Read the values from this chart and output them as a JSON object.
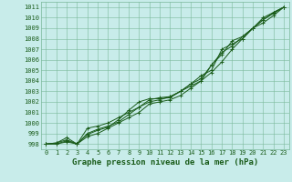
{
  "xlabel": "Graphe pression niveau de la mer (hPa)",
  "x": [
    0,
    1,
    2,
    3,
    4,
    5,
    6,
    7,
    8,
    9,
    10,
    11,
    12,
    13,
    14,
    15,
    16,
    17,
    18,
    19,
    20,
    21,
    22,
    23
  ],
  "series": [
    [
      998.0,
      998.1,
      998.4,
      998.0,
      999.0,
      999.4,
      999.7,
      1000.1,
      1000.8,
      1001.5,
      1002.2,
      1002.4,
      1002.5,
      1003.0,
      1003.7,
      1004.2,
      1005.5,
      1006.7,
      1007.3,
      1008.2,
      1009.0,
      1009.8,
      1010.5,
      1011.0
    ],
    [
      998.0,
      998.0,
      998.3,
      998.0,
      998.9,
      999.3,
      999.6,
      1000.3,
      1001.2,
      1002.0,
      1002.3,
      1002.3,
      1002.4,
      1003.0,
      1003.7,
      1004.5,
      1005.0,
      1007.0,
      1007.5,
      1008.0,
      1009.0,
      1010.0,
      1010.5,
      1011.0
    ],
    [
      998.0,
      998.1,
      998.6,
      998.0,
      999.5,
      999.7,
      1000.0,
      1000.5,
      1001.0,
      1001.5,
      1002.0,
      1002.2,
      1002.5,
      1003.0,
      1003.5,
      1004.0,
      1005.5,
      1006.5,
      1007.8,
      1008.2,
      1009.0,
      1009.5,
      1010.2,
      1011.0
    ],
    [
      998.0,
      998.0,
      998.2,
      998.0,
      998.7,
      999.0,
      999.5,
      1000.0,
      1000.5,
      1001.0,
      1001.8,
      1002.0,
      1002.2,
      1002.6,
      1003.3,
      1004.0,
      1004.8,
      1005.8,
      1007.0,
      1008.0,
      1009.0,
      1009.8,
      1010.4,
      1011.0
    ]
  ],
  "ylim": [
    997.5,
    1011.5
  ],
  "xlim": [
    -0.5,
    23.5
  ],
  "yticks": [
    998,
    999,
    1000,
    1001,
    1002,
    1003,
    1004,
    1005,
    1006,
    1007,
    1008,
    1009,
    1010,
    1011
  ],
  "xticks": [
    0,
    1,
    2,
    3,
    4,
    5,
    6,
    7,
    8,
    9,
    10,
    11,
    12,
    13,
    14,
    15,
    16,
    17,
    18,
    19,
    20,
    21,
    22,
    23
  ],
  "line_color": "#1a5c1a",
  "bg_color": "#c8ecea",
  "grid_color": "#7ab89a",
  "marker": "+",
  "marker_size": 3,
  "linewidth": 0.7,
  "fontsize_label": 6.5,
  "fontsize_tick": 5.0
}
